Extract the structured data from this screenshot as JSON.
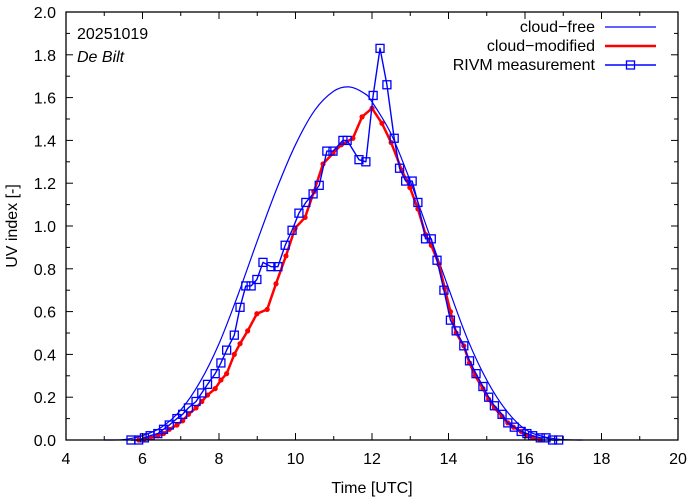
{
  "chart_data": {
    "type": "line",
    "title": "",
    "xlabel": "Time  [UTC]",
    "ylabel": "UV index  [-]",
    "xlim": [
      4,
      20
    ],
    "ylim": [
      0,
      2.0
    ],
    "xticks": [
      4,
      6,
      8,
      10,
      12,
      14,
      16,
      18,
      20
    ],
    "xtick_labels": [
      "4",
      "6",
      "8",
      "10",
      "12",
      "14",
      "16",
      "18",
      "20"
    ],
    "yticks": [
      0,
      0.2,
      0.4,
      0.6,
      0.8,
      1.0,
      1.2,
      1.4,
      1.6,
      1.8,
      2.0
    ],
    "ytick_labels": [
      "0.0",
      "0.2",
      "0.4",
      "0.6",
      "0.8",
      "1.0",
      "1.2",
      "1.4",
      "1.6",
      "1.8",
      "2.0"
    ],
    "grid": false,
    "legend_position": "top-right",
    "annotations": [
      {
        "text": "20251019",
        "style": "normal",
        "position": "top-left"
      },
      {
        "text": "De Bilt",
        "style": "italic",
        "position": "top-left"
      }
    ],
    "series": [
      {
        "name": "cloud−free",
        "color": "#0000ff",
        "style": "thin-line",
        "x": [
          5.0,
          5.5,
          6.0,
          6.5,
          7.0,
          7.5,
          8.0,
          8.5,
          9.0,
          9.5,
          10.0,
          10.5,
          11.0,
          11.4,
          11.8,
          12.0,
          12.5,
          13.0,
          13.5,
          14.0,
          14.5,
          15.0,
          15.5,
          16.0,
          16.5,
          17.0,
          17.5
        ],
        "y": [
          0.0,
          0.002,
          0.02,
          0.06,
          0.14,
          0.27,
          0.45,
          0.68,
          0.93,
          1.17,
          1.38,
          1.54,
          1.63,
          1.65,
          1.62,
          1.58,
          1.43,
          1.21,
          0.96,
          0.71,
          0.47,
          0.28,
          0.14,
          0.05,
          0.015,
          0.002,
          0.0
        ]
      },
      {
        "name": "cloud−modified",
        "color": "#ff0000",
        "style": "thick-line-dots",
        "x": [
          5.9,
          6.05,
          6.2,
          6.4,
          6.55,
          6.7,
          6.9,
          7.05,
          7.2,
          7.4,
          7.55,
          7.7,
          7.9,
          8.05,
          8.2,
          8.4,
          8.55,
          8.75,
          8.99,
          9.26,
          9.49,
          9.75,
          9.99,
          10.25,
          10.48,
          10.72,
          10.98,
          11.2,
          11.5,
          11.74,
          12.0,
          12.26,
          12.5,
          12.78,
          12.99,
          13.2,
          13.4,
          13.55,
          13.75,
          13.9,
          14.05,
          14.2,
          14.4,
          14.55,
          14.7,
          14.9,
          15.05,
          15.2,
          15.4,
          15.55,
          15.7,
          15.9,
          16.05,
          16.2,
          16.4
        ],
        "y": [
          0.0,
          0.005,
          0.01,
          0.02,
          0.03,
          0.05,
          0.07,
          0.09,
          0.12,
          0.15,
          0.18,
          0.21,
          0.24,
          0.28,
          0.31,
          0.4,
          0.45,
          0.51,
          0.59,
          0.61,
          0.73,
          0.86,
          0.99,
          1.04,
          1.16,
          1.29,
          1.34,
          1.38,
          1.41,
          1.51,
          1.55,
          1.48,
          1.39,
          1.26,
          1.18,
          1.08,
          0.96,
          0.91,
          0.82,
          0.71,
          0.6,
          0.5,
          0.44,
          0.36,
          0.3,
          0.24,
          0.19,
          0.15,
          0.11,
          0.08,
          0.06,
          0.04,
          0.02,
          0.01,
          0.0
        ]
      },
      {
        "name": "RIVM measurement",
        "color": "#0000ff",
        "style": "line-squares",
        "x": [
          5.7,
          5.9,
          6.05,
          6.2,
          6.4,
          6.55,
          6.7,
          6.9,
          7.05,
          7.2,
          7.4,
          7.55,
          7.7,
          7.9,
          8.05,
          8.2,
          8.4,
          8.55,
          8.7,
          8.84,
          8.99,
          9.15,
          9.36,
          9.54,
          9.73,
          9.91,
          10.09,
          10.27,
          10.46,
          10.62,
          10.82,
          10.98,
          11.24,
          11.35,
          11.66,
          11.84,
          12.03,
          12.21,
          12.39,
          12.58,
          12.72,
          12.88,
          13.05,
          13.2,
          13.4,
          13.55,
          13.7,
          13.88,
          14.05,
          14.2,
          14.4,
          14.55,
          14.72,
          14.9,
          15.05,
          15.2,
          15.4,
          15.55,
          15.72,
          15.9,
          16.05,
          16.2,
          16.4,
          16.55,
          16.72,
          16.88
        ],
        "y": [
          0.0,
          0.0,
          0.01,
          0.02,
          0.03,
          0.05,
          0.07,
          0.1,
          0.12,
          0.15,
          0.18,
          0.22,
          0.26,
          0.31,
          0.36,
          0.42,
          0.49,
          0.62,
          0.72,
          0.72,
          0.75,
          0.83,
          0.81,
          0.81,
          0.91,
          0.98,
          1.06,
          1.11,
          1.15,
          1.19,
          1.35,
          1.35,
          1.4,
          1.4,
          1.31,
          1.3,
          1.61,
          1.83,
          1.66,
          1.41,
          1.27,
          1.21,
          1.21,
          1.11,
          0.94,
          0.94,
          0.84,
          0.7,
          0.56,
          0.51,
          0.44,
          0.37,
          0.31,
          0.25,
          0.2,
          0.16,
          0.12,
          0.08,
          0.06,
          0.04,
          0.03,
          0.02,
          0.01,
          0.01,
          0.0,
          0.0
        ]
      }
    ]
  }
}
